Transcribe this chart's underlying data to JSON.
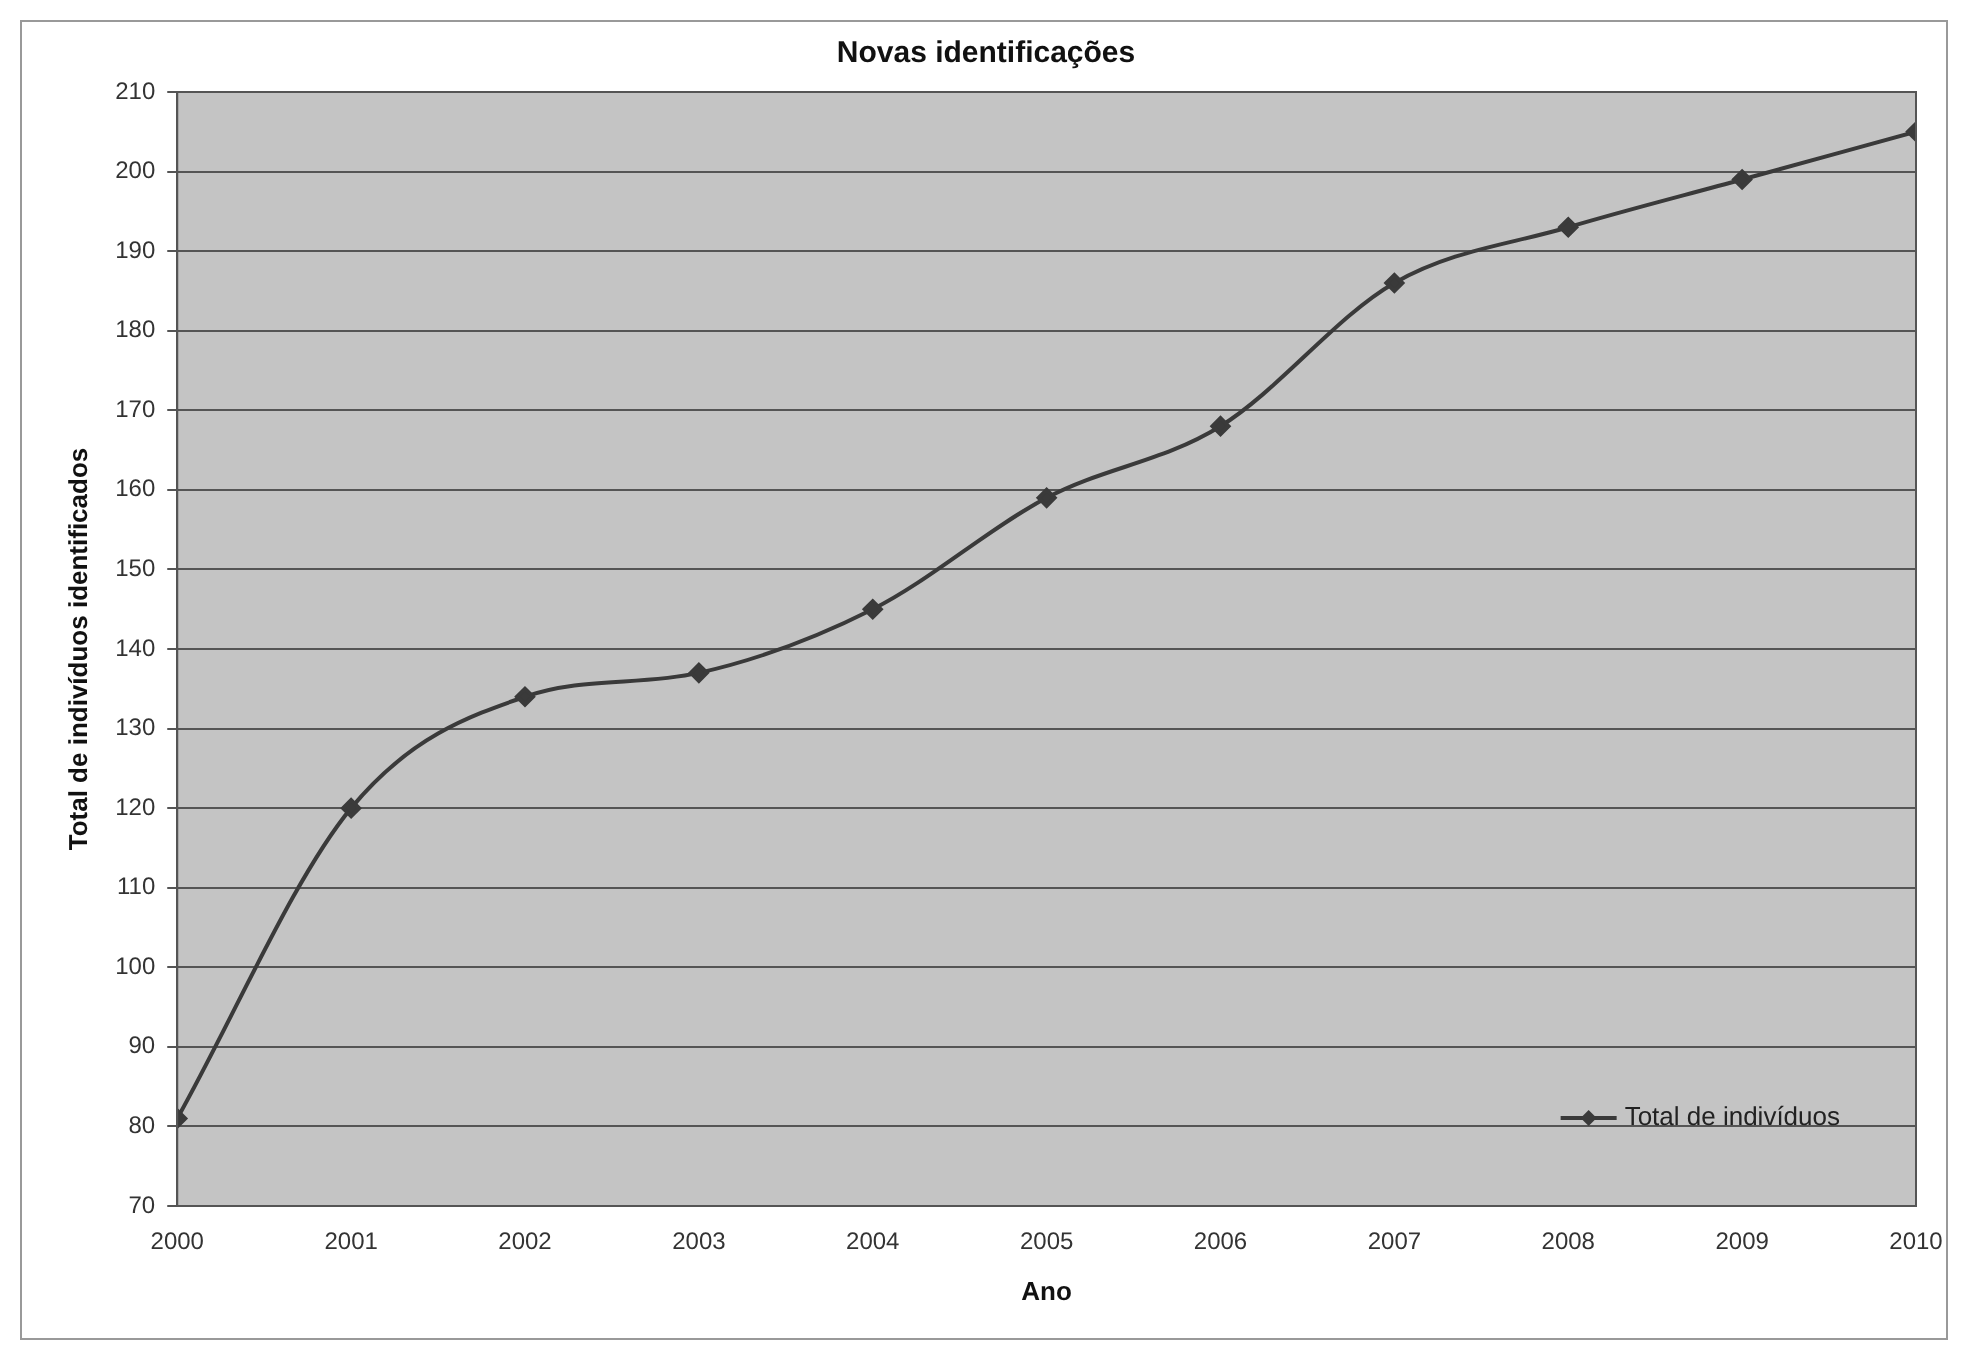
{
  "chart_data": {
    "type": "line",
    "title": "Novas identificações",
    "xlabel": "Ano",
    "ylabel": "Total de indivíduos identificados",
    "x": [
      2000,
      2001,
      2002,
      2003,
      2004,
      2005,
      2006,
      2007,
      2008,
      2009,
      2010
    ],
    "series": [
      {
        "name": "Total de indivíduos",
        "color": "#3a3a3a",
        "values": [
          81,
          120,
          134,
          137,
          145,
          159,
          168,
          186,
          193,
          199,
          205
        ]
      }
    ],
    "xlim": [
      2000,
      2010
    ],
    "xticks": [
      2000,
      2001,
      2002,
      2003,
      2004,
      2005,
      2006,
      2007,
      2008,
      2009,
      2010
    ],
    "ylim": [
      70,
      210
    ],
    "yticks": [
      70,
      80,
      90,
      100,
      110,
      120,
      130,
      140,
      150,
      160,
      170,
      180,
      190,
      200,
      210
    ],
    "grid": "y",
    "legend": "bottom right",
    "marker": "diamond",
    "line_style": "solid"
  }
}
